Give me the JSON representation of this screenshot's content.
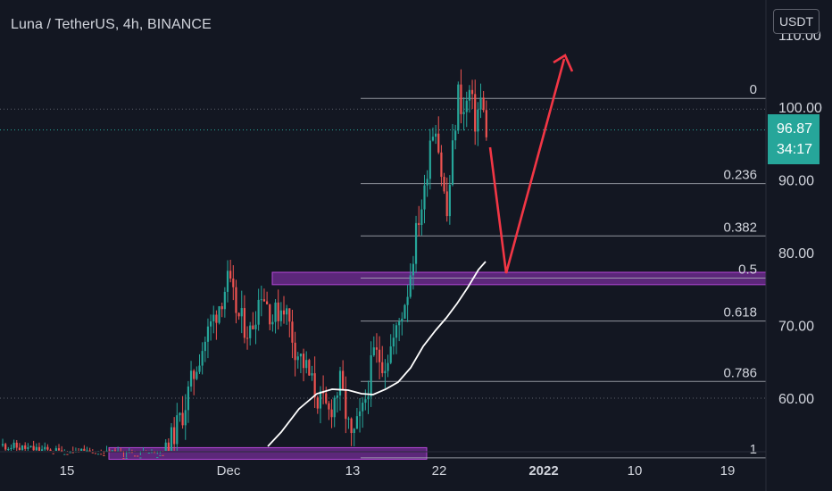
{
  "header": {
    "symbol_title": "Luna / TetherUS, 4h, BINANCE",
    "currency_button": "USDT"
  },
  "price_scale": {
    "top_clipped_label": "110.00",
    "current_price": "96.87",
    "countdown": "34:17"
  },
  "colors": {
    "background": "#131722",
    "axis_text": "#d1d4dc",
    "up_candle": "#26a69a",
    "down_candle": "#ef5350",
    "fib_line": "#b2b5be",
    "zone_fill": "#6a2a8a",
    "zone_border": "#b548d8",
    "arrow": "#f23645",
    "moving_average": "#ffffff",
    "price_badge": "#26a69a"
  },
  "chart_data": {
    "type": "candlestick",
    "ylim": [
      50,
      113
    ],
    "y_ticks": [
      {
        "value": 60,
        "label": "60.00"
      },
      {
        "value": 70,
        "label": "70.00"
      },
      {
        "value": 80,
        "label": "80.00"
      },
      {
        "value": 90,
        "label": "90.00"
      },
      {
        "value": 100,
        "label": "100.00"
      }
    ],
    "x_ticks": [
      {
        "label": "15",
        "bold": false
      },
      {
        "label": "Dec",
        "bold": false
      },
      {
        "label": "13",
        "bold": false
      },
      {
        "label": "22",
        "bold": false
      },
      {
        "label": "2022",
        "bold": true
      },
      {
        "label": "10",
        "bold": false
      },
      {
        "label": "19",
        "bold": false
      }
    ],
    "fibonacci": [
      {
        "level": "0",
        "value": 101.2
      },
      {
        "level": "0.236",
        "value": 89.5
      },
      {
        "level": "0.382",
        "value": 82.3
      },
      {
        "level": "0.5",
        "value": 76.5
      },
      {
        "level": "0.618",
        "value": 70.6
      },
      {
        "level": "0.786",
        "value": 62.3
      },
      {
        "level": "1",
        "value": 51.8
      }
    ],
    "zones": [
      {
        "name": "resistance-support-zone",
        "from_value": 75.6,
        "to_value": 77.3
      },
      {
        "name": "demand-zone",
        "from_value": 51.6,
        "to_value": 53.2
      }
    ],
    "current_price": 96.87
  }
}
